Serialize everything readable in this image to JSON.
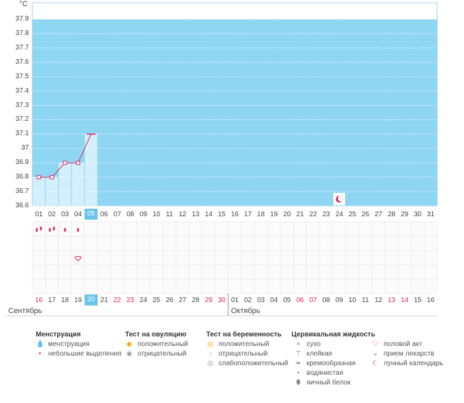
{
  "unit": "°C",
  "chart_data": {
    "type": "line",
    "y_ticks": [
      "37.9",
      "37.8",
      "37.7",
      "37.6",
      "37.5",
      "37.4",
      "37.3",
      "37.2",
      "37.1",
      "37",
      "36.9",
      "36.8",
      "36.7",
      "36.6"
    ],
    "ylim": [
      36.6,
      37.9
    ],
    "days": [
      "01",
      "02",
      "03",
      "04",
      "05",
      "06",
      "07",
      "08",
      "09",
      "10",
      "11",
      "12",
      "13",
      "14",
      "15",
      "16",
      "17",
      "18",
      "19",
      "20",
      "21",
      "22",
      "23",
      "24",
      "25",
      "26",
      "27",
      "28",
      "29",
      "30",
      "31"
    ],
    "temps": [
      36.8,
      36.8,
      36.9,
      36.9,
      37.1
    ],
    "grid": "dashed-horizontal",
    "selected_day": "05"
  },
  "cycle_days": [
    "16",
    "17",
    "18",
    "19",
    "20",
    "21",
    "22",
    "23",
    "24",
    "25",
    "26",
    "27",
    "28",
    "29",
    "30",
    "01",
    "02",
    "03",
    "04",
    "05",
    "06",
    "07",
    "08",
    "09",
    "10",
    "11",
    "12",
    "13",
    "14",
    "15",
    "16"
  ],
  "cycle_red_idx": [
    0,
    6,
    7,
    13,
    14,
    20,
    21,
    27,
    28
  ],
  "months": {
    "september": "Сентябрь",
    "october": "Октябрь"
  },
  "legend": {
    "menstruation": {
      "title": "Менструация",
      "items": [
        "менструация",
        "небольшие выделения"
      ]
    },
    "ovulation": {
      "title": "Тест на овуляцию",
      "items": [
        "положительный",
        "отрицательный"
      ]
    },
    "pregnancy": {
      "title": "Тест на беременность",
      "items": [
        "положительный",
        "отрицательный",
        "слабоположительный"
      ]
    },
    "cervical": {
      "title": "Цервикальная жидкость",
      "items": [
        "сухо",
        "клейкая",
        "кремообразная",
        "водянистая",
        "яичный белок"
      ]
    },
    "other": {
      "items": [
        "половой акт",
        "прием лекарств",
        "лунный календарь"
      ]
    }
  },
  "colors": {
    "plot_bg": "#8fd6f3",
    "bar": "#d3effb",
    "line": "#e0245e",
    "red": "#e0245e"
  }
}
